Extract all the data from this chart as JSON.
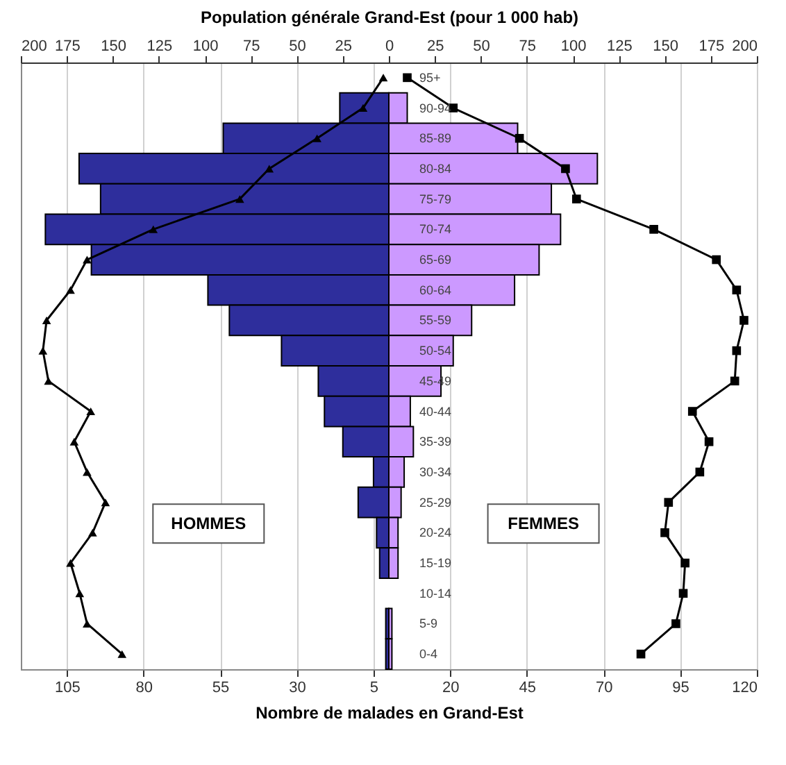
{
  "chart_data": {
    "type": "bar",
    "orientation": "horizontal",
    "stacked": true,
    "x2label": "Population générale Grand-Est (pour 1 000 hab)",
    "xlabel": "Nombre de malades en Grand-Est",
    "categories": [
      "95+",
      "90-94",
      "85-89",
      "80-84",
      "75-79",
      "70-74",
      "65-69",
      "60-64",
      "55-59",
      "50-54",
      "45-49",
      "40-44",
      "35-39",
      "30-34",
      "25-29",
      "20-24",
      "15-19",
      "10-14",
      "5-9",
      "0-4"
    ],
    "series": [
      {
        "color": "#2e2e9c",
        "values": [
          0,
          -16,
          -54,
          -101,
          -94,
          -112,
          -97,
          -59,
          -52,
          -35,
          -23,
          -21,
          -15,
          -5,
          -10,
          -4,
          -3,
          0,
          -1,
          -1
        ]
      },
      {
        "color": "#cc99ff",
        "values": [
          0,
          6,
          42,
          68,
          53,
          56,
          49,
          41,
          27,
          21,
          17,
          7,
          8,
          5,
          4,
          3,
          3,
          0,
          1,
          1
        ]
      },
      {
        "type": "line",
        "axis": "x2",
        "color": "#000000",
        "marker": "triangle",
        "values": [
          -3,
          -14,
          -39,
          -65,
          -81,
          -128,
          -164,
          -173,
          -186,
          -188,
          -185,
          -162,
          -171,
          -164,
          -154,
          -161,
          -173,
          -168,
          -164,
          -145
        ]
      },
      {
        "type": "line",
        "axis": "x2",
        "color": "#000000",
        "marker": "square",
        "values": [
          10,
          35,
          71,
          96,
          102,
          144,
          178,
          189,
          193,
          189,
          188,
          165,
          174,
          169,
          152,
          150,
          161,
          160,
          156,
          137
        ]
      }
    ],
    "xlim": [
      -120,
      120
    ],
    "xticks": [
      {
        "value": -105,
        "label": "105"
      },
      {
        "value": -80,
        "label": "80"
      },
      {
        "value": -55,
        "label": "55"
      },
      {
        "value": -30,
        "label": "30"
      },
      {
        "value": -5,
        "label": "5"
      },
      20,
      45,
      70,
      95,
      120
    ],
    "x2lim": [
      -200,
      200
    ],
    "x2ticks": [
      {
        "value": -200,
        "label": "200"
      },
      {
        "value": -175,
        "label": "175"
      },
      {
        "value": -150,
        "label": "150"
      },
      {
        "value": -125,
        "label": "125"
      },
      {
        "value": -100,
        "label": "100"
      },
      {
        "value": -75,
        "label": "75"
      },
      {
        "value": -50,
        "label": "50"
      },
      {
        "value": -25,
        "label": "25"
      },
      0,
      25,
      50,
      75,
      100,
      125,
      150,
      175,
      200
    ],
    "annotations": [
      "HOMMES",
      "FEMMES"
    ],
    "grid": "x",
    "line_style": "solid"
  }
}
